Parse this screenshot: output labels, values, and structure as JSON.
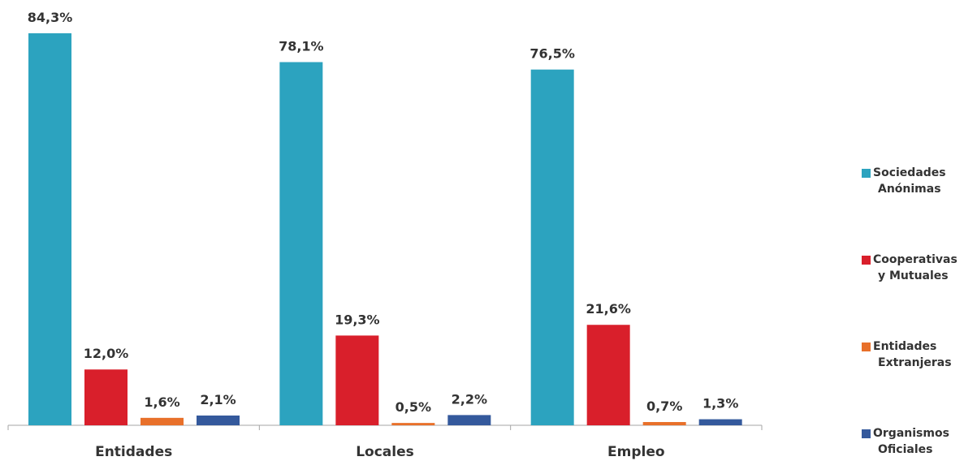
{
  "chart_data": {
    "type": "bar",
    "categories": [
      "Entidades",
      "Locales",
      "Empleo"
    ],
    "series": [
      {
        "name": "Sociedades Anónimas",
        "legend_lines": [
          "Sociedades",
          "Anónimas"
        ],
        "color": "#2ca3bf",
        "values": [
          84.3,
          78.1,
          76.5
        ],
        "labels": [
          "84,3%",
          "78,1%",
          "76,5%"
        ]
      },
      {
        "name": "Cooperativas y Mutuales",
        "legend_lines": [
          "Cooperativas",
          "y Mutuales"
        ],
        "color": "#d91f2b",
        "values": [
          12.0,
          19.3,
          21.6
        ],
        "labels": [
          "12,0%",
          "19,3%",
          "21,6%"
        ]
      },
      {
        "name": "Entidades Extranjeras",
        "legend_lines": [
          "Entidades",
          "Extranjeras"
        ],
        "color": "#e8702a",
        "values": [
          1.6,
          0.5,
          0.7
        ],
        "labels": [
          "1,6%",
          "0,5%",
          "0,7%"
        ]
      },
      {
        "name": "Organismos Oficiales",
        "legend_lines": [
          "Organismos",
          "Oficiales"
        ],
        "color": "#34599c",
        "values": [
          2.1,
          2.2,
          1.3
        ],
        "labels": [
          "2,1%",
          "2,2%",
          "1,3%"
        ]
      }
    ],
    "ylim": [
      0,
      84.3
    ],
    "grid": false,
    "legend_position": "right",
    "title": "",
    "xlabel": "",
    "ylabel": ""
  }
}
